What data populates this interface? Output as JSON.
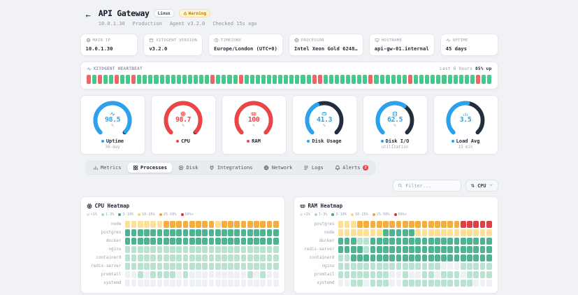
{
  "header": {
    "back_icon": "←",
    "title": "API Gateway",
    "os_badge": "Linux",
    "status_badge": "Warning",
    "meta": [
      "10.0.1.30",
      "Production",
      "Agent v3.2.0",
      "Checked 15s ago"
    ]
  },
  "info_cards": [
    {
      "icon": "globe-icon",
      "label": "MAIN IP",
      "value": "10.0.1.30"
    },
    {
      "icon": "box-icon",
      "label": "XITOGENT VERSION",
      "value": "v3.2.0"
    },
    {
      "icon": "clock-icon",
      "label": "TIMEZONE",
      "value": "Europe/London (UTC+0)"
    },
    {
      "icon": "cpu-icon",
      "label": "PROCESSOR",
      "value": "Intel Xeon Gold 6248…"
    },
    {
      "icon": "monitor-icon",
      "label": "HOSTNAME",
      "value": "api-gw-01.internal"
    },
    {
      "icon": "activity-icon",
      "label": "UPTIME",
      "value": "45 days"
    }
  ],
  "heartbeat": {
    "title": "XITOGENT HEARTBEAT",
    "range_label": "Last 6 hours",
    "uptime_label": "85% up",
    "up_color": "#45c88c",
    "down_color": "#ee6565",
    "bars": [
      0,
      1,
      0,
      1,
      1,
      0,
      1,
      1,
      0,
      1,
      1,
      1,
      1,
      1,
      1,
      1,
      1,
      1,
      1,
      1,
      1,
      1,
      0,
      1,
      1,
      1,
      1,
      0,
      1,
      1,
      1,
      1,
      1,
      1,
      1,
      1,
      1,
      1,
      1,
      1,
      0,
      0,
      1,
      1,
      1,
      1,
      1,
      1,
      1,
      1,
      0,
      1,
      1,
      1,
      1,
      1,
      1,
      0,
      1,
      1,
      1,
      1,
      1,
      1,
      1,
      1,
      1,
      1,
      1,
      0,
      1,
      1
    ]
  },
  "gauges": [
    {
      "name": "Uptime",
      "value": "98.5",
      "unit": "%",
      "sublabel": "30-day",
      "color": "#29a3f1",
      "fraction": 0.985,
      "icon": "activity-icon"
    },
    {
      "name": "CPU",
      "value": "98.7",
      "unit": "%",
      "sublabel": "",
      "color": "#ef4444",
      "fraction": 0.987,
      "icon": "cpu-icon"
    },
    {
      "name": "RAM",
      "value": "100",
      "unit": "%",
      "sublabel": "",
      "color": "#ef4444",
      "fraction": 1.0,
      "icon": "memory-icon"
    },
    {
      "name": "Disk Usage",
      "value": "41.3",
      "unit": "%",
      "sublabel": "",
      "color": "#29a3f1",
      "fraction": 0.413,
      "icon": "harddrive-icon"
    },
    {
      "name": "Disk I/O",
      "value": "62.5",
      "unit": "%",
      "sublabel": "utilization",
      "color": "#29a3f1",
      "fraction": 0.625,
      "icon": "database-icon"
    },
    {
      "name": "Load Avg",
      "value": "3.5",
      "unit": "",
      "sublabel": "15 min",
      "color": "#29a3f1",
      "fraction": 0.53,
      "icon": "bar-chart-icon"
    }
  ],
  "gauge_track_color": "#232e3c",
  "tabs": [
    {
      "label": "Metrics",
      "icon": "chart-bars-icon",
      "active": false
    },
    {
      "label": "Processes",
      "icon": "grid-icon",
      "active": true
    },
    {
      "label": "Disk",
      "icon": "disk-icon",
      "active": false
    },
    {
      "label": "Integrations",
      "icon": "plug-icon",
      "active": false
    },
    {
      "label": "Network",
      "icon": "globe-icon",
      "active": false
    },
    {
      "label": "Logs",
      "icon": "logs-icon",
      "active": false
    },
    {
      "label": "Alerts",
      "icon": "bell-icon",
      "active": false,
      "badge": "2"
    }
  ],
  "toolbar": {
    "filter_placeholder": "Filter...",
    "sort_label": "CPU"
  },
  "level_colors": [
    "#edf1f5",
    "#b9e2d1",
    "#4db391",
    "#fbe096",
    "#f3ae3d",
    "#e13d45"
  ],
  "heatmap_legend": [
    {
      "label": "<1%",
      "color": "#dfe5ea"
    },
    {
      "label": "1-3%",
      "color": "#a7d9c3"
    },
    {
      "label": "3-10%",
      "color": "#3ca67f"
    },
    {
      "label": "10-25%",
      "color": "#f6d77e"
    },
    {
      "label": "25-50%",
      "color": "#f0a13a"
    },
    {
      "label": "50%+",
      "color": "#e02d3c"
    }
  ],
  "heatmaps": [
    {
      "title": "CPU Heatmap",
      "icon": "cpu-icon",
      "rows": [
        {
          "name": "node",
          "cells": [
            3,
            3,
            3,
            3,
            3,
            3,
            4,
            4,
            4,
            4,
            4,
            4,
            4,
            4,
            3,
            4,
            4,
            4,
            4,
            4,
            4,
            4,
            4,
            4
          ]
        },
        {
          "name": "postgres",
          "cells": [
            2,
            2,
            2,
            2,
            2,
            2,
            2,
            2,
            2,
            2,
            2,
            2,
            2,
            2,
            2,
            2,
            2,
            2,
            2,
            2,
            2,
            2,
            2,
            2
          ]
        },
        {
          "name": "docker",
          "cells": [
            2,
            2,
            2,
            2,
            2,
            2,
            2,
            2,
            2,
            2,
            2,
            2,
            2,
            2,
            2,
            2,
            2,
            2,
            2,
            2,
            2,
            2,
            2,
            2
          ]
        },
        {
          "name": "nginx",
          "cells": [
            1,
            1,
            1,
            1,
            1,
            1,
            1,
            1,
            1,
            1,
            1,
            1,
            1,
            1,
            1,
            1,
            1,
            1,
            1,
            1,
            1,
            1,
            1,
            1
          ]
        },
        {
          "name": "containerd",
          "cells": [
            1,
            1,
            1,
            1,
            1,
            1,
            1,
            1,
            1,
            1,
            1,
            1,
            1,
            1,
            1,
            1,
            1,
            1,
            1,
            1,
            1,
            1,
            1,
            1
          ]
        },
        {
          "name": "redis-server",
          "cells": [
            1,
            1,
            1,
            1,
            1,
            1,
            1,
            1,
            1,
            1,
            1,
            1,
            1,
            1,
            1,
            1,
            1,
            1,
            1,
            1,
            1,
            1,
            1,
            1
          ]
        },
        {
          "name": "promtail",
          "cells": [
            0,
            0,
            1,
            0,
            1,
            1,
            1,
            1,
            0,
            1,
            0,
            0,
            0,
            0,
            0,
            0,
            0,
            0,
            0,
            1,
            0,
            1,
            0,
            0
          ]
        },
        {
          "name": "systemd",
          "cells": [
            0,
            0,
            0,
            0,
            0,
            0,
            0,
            0,
            0,
            0,
            0,
            0,
            0,
            0,
            0,
            0,
            0,
            0,
            0,
            0,
            0,
            0,
            0,
            0
          ]
        }
      ]
    },
    {
      "title": "RAM Heatmap",
      "icon": "memory-icon",
      "rows": [
        {
          "name": "postgres",
          "cells": [
            3,
            3,
            3,
            4,
            4,
            4,
            4,
            4,
            4,
            4,
            4,
            4,
            4,
            4,
            4,
            4,
            4,
            4,
            4,
            5,
            5,
            5,
            5,
            5
          ]
        },
        {
          "name": "node",
          "cells": [
            3,
            3,
            3,
            3,
            3,
            3,
            3,
            2,
            2,
            2,
            2,
            2,
            3,
            3,
            3,
            3,
            3,
            3,
            3,
            3,
            3,
            3,
            3,
            3
          ]
        },
        {
          "name": "docker",
          "cells": [
            2,
            2,
            2,
            1,
            1,
            2,
            2,
            2,
            2,
            2,
            2,
            2,
            2,
            2,
            2,
            2,
            2,
            2,
            2,
            2,
            2,
            2,
            2,
            2
          ]
        },
        {
          "name": "redis-server",
          "cells": [
            2,
            2,
            2,
            2,
            1,
            2,
            2,
            2,
            2,
            2,
            2,
            2,
            2,
            2,
            2,
            2,
            2,
            2,
            2,
            2,
            2,
            2,
            2,
            2
          ]
        },
        {
          "name": "containerd",
          "cells": [
            1,
            1,
            2,
            2,
            2,
            2,
            2,
            2,
            2,
            2,
            2,
            2,
            2,
            2,
            2,
            2,
            2,
            2,
            2,
            2,
            2,
            2,
            2,
            2
          ]
        },
        {
          "name": "nginx",
          "cells": [
            1,
            1,
            1,
            1,
            1,
            1,
            1,
            1,
            1,
            1,
            1,
            1,
            1,
            1,
            1,
            1,
            0,
            0,
            0,
            1,
            1,
            1,
            1,
            1
          ]
        },
        {
          "name": "promtail",
          "cells": [
            1,
            1,
            1,
            1,
            1,
            1,
            1,
            1,
            0,
            0,
            1,
            0,
            0,
            1,
            1,
            0,
            1,
            1,
            1,
            0,
            1,
            1,
            1,
            1
          ]
        },
        {
          "name": "systemd",
          "cells": [
            0,
            0,
            1,
            1,
            0,
            1,
            1,
            1,
            0,
            0,
            1,
            1,
            1,
            1,
            1,
            1,
            1,
            1,
            1,
            1,
            1,
            0,
            0,
            0
          ]
        }
      ]
    }
  ]
}
